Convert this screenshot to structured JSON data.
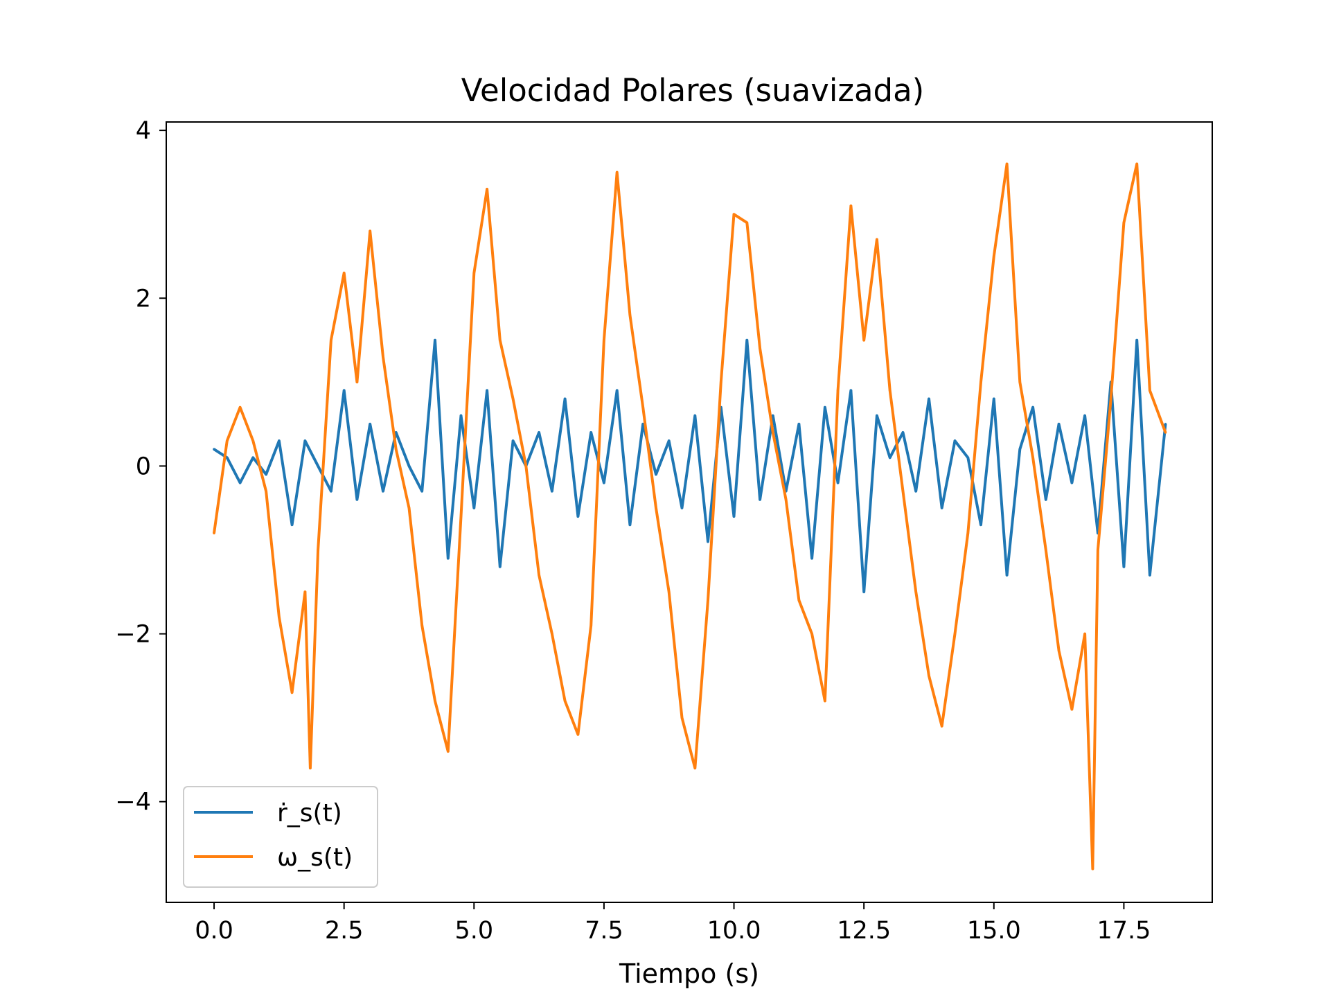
{
  "chart_data": {
    "type": "line",
    "title": "Velocidad Polares (suavizada)",
    "xlabel": "Tiempo (s)",
    "ylabel": "",
    "xlim": [
      -0.92,
      19.2
    ],
    "ylim": [
      -5.2,
      4.1
    ],
    "xticks": [
      0.0,
      2.5,
      5.0,
      7.5,
      10.0,
      12.5,
      15.0,
      17.5
    ],
    "xtick_labels": [
      "0.0",
      "2.5",
      "5.0",
      "7.5",
      "10.0",
      "12.5",
      "15.0",
      "17.5"
    ],
    "yticks": [
      -4,
      -2,
      0,
      2,
      4
    ],
    "ytick_labels": [
      "−4",
      "−2",
      "0",
      "2",
      "4"
    ],
    "grid": false,
    "legend_position": "lower-left",
    "series": [
      {
        "name": "ṙ_s(t)",
        "color": "#1f77b4",
        "x": [
          0.0,
          0.25,
          0.5,
          0.75,
          1.0,
          1.25,
          1.5,
          1.75,
          2.0,
          2.25,
          2.5,
          2.75,
          3.0,
          3.25,
          3.5,
          3.75,
          4.0,
          4.25,
          4.5,
          4.75,
          5.0,
          5.25,
          5.5,
          5.75,
          6.0,
          6.25,
          6.5,
          6.75,
          7.0,
          7.25,
          7.5,
          7.75,
          8.0,
          8.25,
          8.5,
          8.75,
          9.0,
          9.25,
          9.5,
          9.75,
          10.0,
          10.25,
          10.5,
          10.75,
          11.0,
          11.25,
          11.5,
          11.75,
          12.0,
          12.25,
          12.5,
          12.75,
          13.0,
          13.25,
          13.5,
          13.75,
          14.0,
          14.25,
          14.5,
          14.75,
          15.0,
          15.25,
          15.5,
          15.75,
          16.0,
          16.25,
          16.5,
          16.75,
          17.0,
          17.25,
          17.5,
          17.75,
          18.0,
          18.3
        ],
        "values": [
          0.2,
          0.1,
          -0.2,
          0.1,
          -0.1,
          0.3,
          -0.7,
          0.3,
          0.0,
          -0.3,
          0.9,
          -0.4,
          0.5,
          -0.3,
          0.4,
          0.0,
          -0.3,
          1.5,
          -1.1,
          0.6,
          -0.5,
          0.9,
          -1.2,
          0.3,
          0.0,
          0.4,
          -0.3,
          0.8,
          -0.6,
          0.4,
          -0.2,
          0.9,
          -0.7,
          0.5,
          -0.1,
          0.3,
          -0.5,
          0.6,
          -0.9,
          0.7,
          -0.6,
          1.5,
          -0.4,
          0.6,
          -0.3,
          0.5,
          -1.1,
          0.7,
          -0.2,
          0.9,
          -1.5,
          0.6,
          0.1,
          0.4,
          -0.3,
          0.8,
          -0.5,
          0.3,
          0.1,
          -0.7,
          0.8,
          -1.3,
          0.2,
          0.7,
          -0.4,
          0.5,
          -0.2,
          0.6,
          -0.8,
          1.0,
          -1.2,
          1.5,
          -1.3,
          0.5
        ]
      },
      {
        "name": "ω_s(t)",
        "color": "#ff7f0e",
        "x": [
          0.0,
          0.25,
          0.5,
          0.75,
          1.0,
          1.25,
          1.5,
          1.75,
          1.85,
          2.0,
          2.25,
          2.5,
          2.75,
          3.0,
          3.25,
          3.5,
          3.75,
          4.0,
          4.25,
          4.5,
          4.75,
          5.0,
          5.25,
          5.5,
          5.75,
          6.0,
          6.25,
          6.5,
          6.75,
          7.0,
          7.25,
          7.5,
          7.75,
          8.0,
          8.25,
          8.5,
          8.75,
          9.0,
          9.25,
          9.5,
          9.75,
          10.0,
          10.25,
          10.5,
          10.75,
          11.0,
          11.25,
          11.5,
          11.75,
          12.0,
          12.25,
          12.5,
          12.75,
          13.0,
          13.25,
          13.5,
          13.75,
          14.0,
          14.25,
          14.5,
          14.75,
          15.0,
          15.25,
          15.5,
          15.75,
          16.0,
          16.25,
          16.5,
          16.75,
          16.9,
          17.0,
          17.25,
          17.5,
          17.75,
          18.0,
          18.3
        ],
        "values": [
          -0.8,
          0.3,
          0.7,
          0.3,
          -0.3,
          -1.8,
          -2.7,
          -1.5,
          -3.6,
          -1.0,
          1.5,
          2.3,
          1.0,
          2.8,
          1.3,
          0.2,
          -0.5,
          -1.9,
          -2.8,
          -3.4,
          -0.6,
          2.3,
          3.3,
          1.5,
          0.8,
          0.0,
          -1.3,
          -2.0,
          -2.8,
          -3.2,
          -1.9,
          1.5,
          3.5,
          1.8,
          0.7,
          -0.5,
          -1.5,
          -3.0,
          -3.6,
          -1.6,
          1.0,
          3.0,
          2.9,
          1.4,
          0.4,
          -0.4,
          -1.6,
          -2.0,
          -2.8,
          0.9,
          3.1,
          1.5,
          2.7,
          0.9,
          -0.3,
          -1.5,
          -2.5,
          -3.1,
          -2.0,
          -0.8,
          1.0,
          2.5,
          3.6,
          1.0,
          0.1,
          -1.0,
          -2.2,
          -2.9,
          -2.0,
          -4.8,
          -1.0,
          0.8,
          2.9,
          3.6,
          0.9,
          0.4
        ]
      }
    ],
    "legend": [
      "ṙ_s(t)",
      "ω_s(t)"
    ]
  }
}
